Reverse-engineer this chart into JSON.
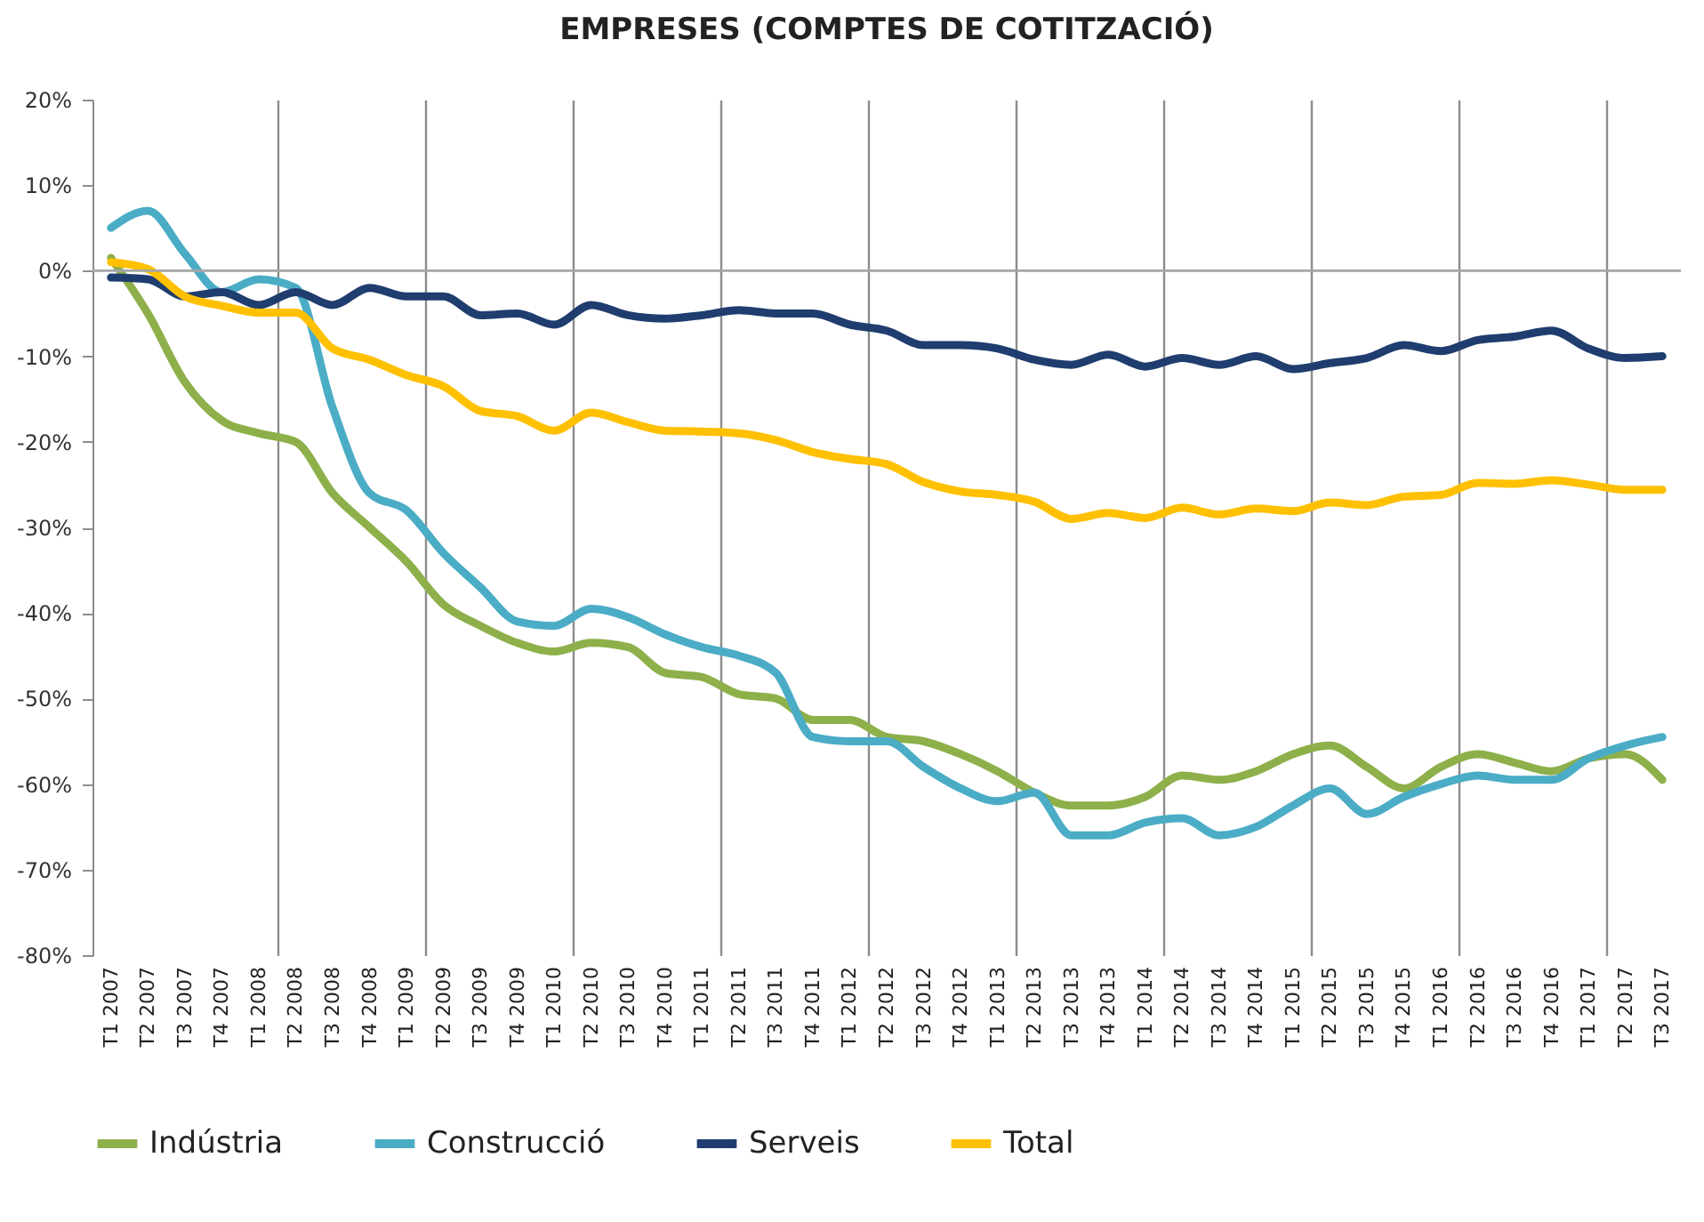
{
  "chart_data": {
    "type": "line",
    "title": "EMPRESES (COMPTES DE COTITZACIÓ)",
    "categories": [
      "T1 2007",
      "T2 2007",
      "T3 2007",
      "T4 2007",
      "T1 2008",
      "T2 2008",
      "T3 2008",
      "T4 2008",
      "T1 2009",
      "T2 2009",
      "T3 2009",
      "T4 2009",
      "T1 2010",
      "T2 2010",
      "T3 2010",
      "T4 2010",
      "T1 2011",
      "T2 2011",
      "T3 2011",
      "T4 2011",
      "T1 2012",
      "T2 2012",
      "T3 2012",
      "T4 2012",
      "T1 2013",
      "T2 2013",
      "T3 2013",
      "T4 2013",
      "T1 2014",
      "T2 2014",
      "T3 2014",
      "T4 2014",
      "T1 2015",
      "T2 2015",
      "T3 2015",
      "T4 2015",
      "T1 2016",
      "T2 2016",
      "T3 2016",
      "T4 2016",
      "T1 2017",
      "T2 2017",
      "T3 2017"
    ],
    "series": [
      {
        "name": "Indústria",
        "color": "#8db04a",
        "values": [
          1.5,
          -5,
          -13,
          -17.5,
          -19,
          -20,
          -26,
          -30,
          -34,
          -39,
          -41.5,
          -43.5,
          -44.5,
          -43.5,
          -44,
          -47,
          -47.5,
          -49.5,
          -50,
          -52.5,
          -52.5,
          -54.5,
          -55,
          -56.5,
          -58.5,
          -61,
          -62.5,
          -62.5,
          -61.5,
          -59,
          -59.5,
          -58.5,
          -56.5,
          -55.5,
          -58,
          -60.5,
          -58,
          -56.5,
          -57.5,
          -58.5,
          -57,
          -56.5,
          -59.5
        ]
      },
      {
        "name": "Construcció",
        "color": "#4bacc6",
        "values": [
          5,
          7,
          2,
          -2.5,
          -1,
          -2,
          -16,
          -26,
          -28,
          -33,
          -37,
          -41,
          -41.5,
          -39.5,
          -40.5,
          -42.5,
          -44,
          -45,
          -47,
          -54.5,
          -55,
          -55,
          -58,
          -60.5,
          -62,
          -61,
          -66,
          -66,
          -64.5,
          -64,
          -66,
          -65,
          -62.5,
          -60.5,
          -63.5,
          -61.5,
          -60,
          -59,
          -59.5,
          -59.5,
          -57,
          -55.5,
          -54.5
        ]
      },
      {
        "name": "Serveis",
        "color": "#1f3d6e",
        "values": [
          -0.8,
          -1,
          -3,
          -2.5,
          -4,
          -2.5,
          -4,
          -2,
          -3,
          -3,
          -5.2,
          -5,
          -6.3,
          -4,
          -5.2,
          -5.6,
          -5.2,
          -4.6,
          -5,
          -5,
          -6.3,
          -7,
          -8.7,
          -8.7,
          -9.1,
          -10.4,
          -11,
          -9.8,
          -11.2,
          -10.2,
          -11,
          -10,
          -11.5,
          -10.8,
          -10.2,
          -8.7,
          -9.4,
          -8.1,
          -7.7,
          -7,
          -9.1,
          -10.2,
          -10
        ]
      },
      {
        "name": "Total",
        "color": "#ffc000",
        "values": [
          1,
          0.2,
          -3,
          -4.1,
          -4.9,
          -4.9,
          -9.1,
          -10.4,
          -12.2,
          -13.5,
          -16.4,
          -17,
          -18.7,
          -16.6,
          -17.7,
          -18.7,
          -18.8,
          -19,
          -19.8,
          -21.2,
          -22,
          -22.6,
          -24.7,
          -25.8,
          -26.2,
          -27,
          -29,
          -28.3,
          -28.9,
          -27.7,
          -28.5,
          -27.8,
          -28.1,
          -27.1,
          -27.4,
          -26.4,
          -26.2,
          -24.8,
          -24.9,
          -24.5,
          -25,
          -25.6,
          -25.6
        ]
      }
    ],
    "ylim": [
      -80,
      20
    ],
    "yticks": [
      {
        "value": -80,
        "label": "-80%"
      },
      {
        "value": -70,
        "label": "-70%"
      },
      {
        "value": -60,
        "label": "-60%"
      },
      {
        "value": -50,
        "label": "-50%"
      },
      {
        "value": -40,
        "label": "-40%"
      },
      {
        "value": -30,
        "label": "-30%"
      },
      {
        "value": -20,
        "label": "-20%"
      },
      {
        "value": -10,
        "label": "-10%"
      },
      {
        "value": 0,
        "label": "0%"
      },
      {
        "value": 10,
        "label": "10%"
      },
      {
        "value": 20,
        "label": "20%"
      }
    ],
    "ref_lines": [
      {
        "axis": "y",
        "value": 0,
        "color": "#a6a6a6"
      }
    ],
    "grid": "x",
    "legend": "bottom",
    "marker": "none",
    "line_style": "solid"
  }
}
